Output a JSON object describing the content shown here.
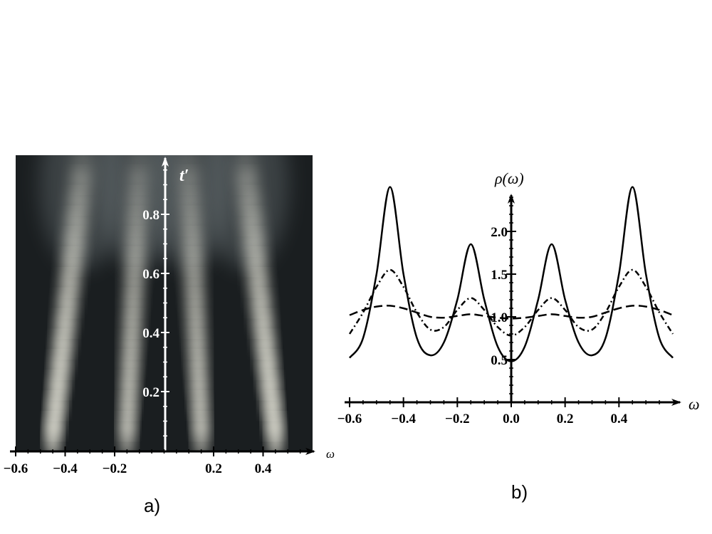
{
  "chart_data": [
    {
      "type": "heatmap",
      "panel_label": "a)",
      "xlabel": "ω",
      "ylabel": "t′",
      "xlim": [
        -0.6,
        0.6
      ],
      "ylim": [
        0,
        1.0
      ],
      "x_ticks": [
        -0.6,
        -0.4,
        -0.2,
        0.2,
        0.4
      ],
      "x_tick_labels": [
        "−0.6",
        "−0.4",
        "−0.2",
        "0.2",
        "0.4"
      ],
      "y_ticks": [
        0.2,
        0.4,
        0.6,
        0.8
      ],
      "y_tick_labels": [
        "0.2",
        "0.4",
        "0.6",
        "0.8"
      ],
      "peaks": [
        {
          "omega_start": -0.45,
          "omega_end": -0.33
        },
        {
          "omega_start": -0.15,
          "omega_end": -0.1
        },
        {
          "omega_start": 0.15,
          "omega_end": 0.1
        },
        {
          "omega_start": 0.45,
          "omega_end": 0.33
        }
      ],
      "colors": {
        "dark": "#15191b",
        "bright": "#f2f1e4"
      }
    },
    {
      "type": "line",
      "panel_label": "b)",
      "xlabel": "ω",
      "ylabel": "ρ(ω)",
      "xlim": [
        -0.6,
        0.6
      ],
      "ylim": [
        0,
        2.5
      ],
      "x_ticks": [
        -0.6,
        -0.4,
        -0.2,
        0.0,
        0.2,
        0.4
      ],
      "x_tick_labels": [
        "−0.6",
        "−0.4",
        "−0.2",
        "0.0",
        "0.2",
        "0.4"
      ],
      "y_ticks": [
        0.5,
        1.0,
        1.5,
        2.0
      ],
      "y_tick_labels": [
        "0.5",
        "1.0",
        "1.5",
        "2.0"
      ],
      "x": [
        -0.6,
        -0.55,
        -0.5,
        -0.45,
        -0.4,
        -0.35,
        -0.3,
        -0.25,
        -0.2,
        -0.15,
        -0.1,
        -0.05,
        0.0,
        0.05,
        0.1,
        0.15,
        0.2,
        0.25,
        0.3,
        0.35,
        0.4,
        0.45,
        0.5,
        0.55,
        0.6
      ],
      "series": [
        {
          "style": "solid",
          "values": [
            0.52,
            0.75,
            1.5,
            2.52,
            1.5,
            0.75,
            0.55,
            0.7,
            1.2,
            1.85,
            1.2,
            0.65,
            0.48,
            0.65,
            1.2,
            1.85,
            1.2,
            0.7,
            0.55,
            0.75,
            1.5,
            2.52,
            1.5,
            0.75,
            0.52
          ]
        },
        {
          "style": "dash-dot",
          "values": [
            0.8,
            1.05,
            1.35,
            1.55,
            1.35,
            1.05,
            0.85,
            0.88,
            1.08,
            1.22,
            1.08,
            0.88,
            0.78,
            0.88,
            1.08,
            1.22,
            1.08,
            0.88,
            0.85,
            1.05,
            1.35,
            1.55,
            1.35,
            1.05,
            0.8
          ]
        },
        {
          "style": "dashed",
          "values": [
            1.02,
            1.08,
            1.12,
            1.13,
            1.1,
            1.05,
            1.0,
            0.99,
            1.01,
            1.03,
            1.01,
            0.99,
            0.98,
            0.99,
            1.01,
            1.03,
            1.01,
            0.99,
            1.0,
            1.05,
            1.1,
            1.13,
            1.12,
            1.08,
            1.02
          ]
        }
      ]
    }
  ]
}
